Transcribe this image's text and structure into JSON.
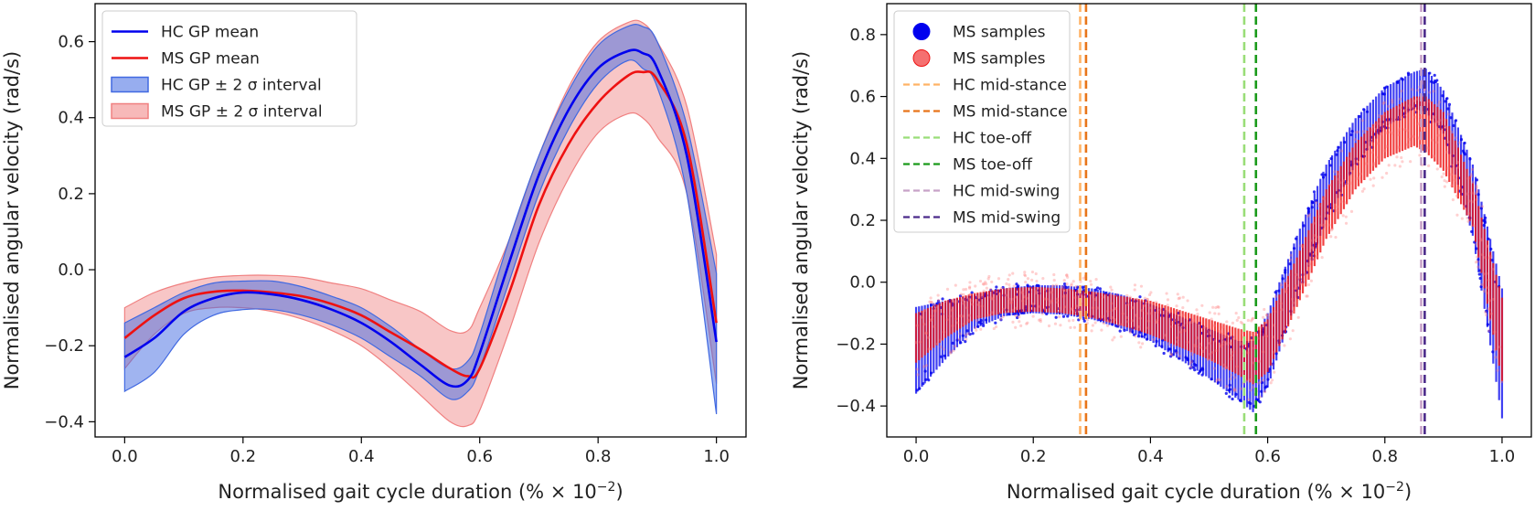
{
  "colors": {
    "hc": "#0000ee",
    "ms": "#ee1111",
    "hc_band_fill": "#4169e1",
    "ms_band_fill": "#f08080",
    "hc_mid_stance": "#ffb366",
    "ms_mid_stance": "#e8751a",
    "hc_toe_off": "#99dd77",
    "ms_toe_off": "#1a9a1a",
    "hc_mid_swing": "#c8a2c8",
    "ms_mid_swing": "#4b2a8a"
  },
  "chart_data": [
    {
      "id": "left",
      "type": "line",
      "xlabel": "Normalised gait cycle duration (% × 10",
      "xlabel_exp": "−2",
      "xlabel_close": ")",
      "ylabel": "Normalised angular velocity (rad/s)",
      "xlim": [
        -0.05,
        1.05
      ],
      "ylim": [
        -0.44,
        0.7
      ],
      "xticks": [
        0.0,
        0.2,
        0.4,
        0.6,
        0.8,
        1.0
      ],
      "xtick_labels": [
        "0.0",
        "0.2",
        "0.4",
        "0.6",
        "0.8",
        "1.0"
      ],
      "yticks": [
        -0.4,
        -0.2,
        0.0,
        0.2,
        0.4,
        0.6
      ],
      "ytick_labels": [
        "−0.4",
        "−0.2",
        "0.0",
        "0.2",
        "0.4",
        "0.6"
      ],
      "x": [
        0.0,
        0.05,
        0.1,
        0.15,
        0.2,
        0.25,
        0.3,
        0.35,
        0.4,
        0.45,
        0.5,
        0.55,
        0.58,
        0.6,
        0.65,
        0.7,
        0.75,
        0.8,
        0.85,
        0.875,
        0.9,
        0.95,
        1.0
      ],
      "series": [
        {
          "name": "HC GP mean",
          "kind": "mean",
          "group": "hc",
          "values": [
            -0.23,
            -0.18,
            -0.11,
            -0.075,
            -0.06,
            -0.065,
            -0.08,
            -0.105,
            -0.14,
            -0.19,
            -0.25,
            -0.305,
            -0.29,
            -0.22,
            0.02,
            0.25,
            0.42,
            0.53,
            0.575,
            0.57,
            0.53,
            0.3,
            -0.19
          ]
        },
        {
          "name": "MS GP mean",
          "kind": "mean",
          "group": "ms",
          "values": [
            -0.18,
            -0.12,
            -0.075,
            -0.058,
            -0.055,
            -0.06,
            -0.07,
            -0.09,
            -0.12,
            -0.165,
            -0.21,
            -0.26,
            -0.28,
            -0.26,
            -0.06,
            0.17,
            0.33,
            0.44,
            0.51,
            0.52,
            0.5,
            0.33,
            -0.14
          ]
        },
        {
          "name": "HC GP ± 2 σ interval",
          "kind": "band",
          "group": "hc",
          "lower": [
            -0.32,
            -0.27,
            -0.17,
            -0.12,
            -0.105,
            -0.105,
            -0.12,
            -0.145,
            -0.18,
            -0.23,
            -0.28,
            -0.34,
            -0.32,
            -0.26,
            -0.03,
            0.2,
            0.37,
            0.49,
            0.55,
            0.53,
            0.48,
            0.2,
            -0.38
          ],
          "upper": [
            -0.14,
            -0.1,
            -0.06,
            -0.035,
            -0.03,
            -0.03,
            -0.045,
            -0.07,
            -0.1,
            -0.15,
            -0.21,
            -0.26,
            -0.24,
            -0.17,
            0.08,
            0.3,
            0.47,
            0.59,
            0.64,
            0.64,
            0.6,
            0.38,
            -0.01
          ]
        },
        {
          "name": "MS GP ± 2 σ interval",
          "kind": "band",
          "group": "ms",
          "lower": [
            -0.26,
            -0.17,
            -0.115,
            -0.1,
            -0.1,
            -0.11,
            -0.13,
            -0.16,
            -0.2,
            -0.26,
            -0.33,
            -0.4,
            -0.41,
            -0.37,
            -0.16,
            0.07,
            0.24,
            0.36,
            0.41,
            0.4,
            0.35,
            0.2,
            -0.3
          ]
        },
        {
          "name": "MS GP ± 2 σ interval upper",
          "kind": "band_upper",
          "group": "ms",
          "upper": [
            -0.1,
            -0.06,
            -0.035,
            -0.02,
            -0.015,
            -0.015,
            -0.02,
            -0.035,
            -0.05,
            -0.08,
            -0.11,
            -0.16,
            -0.16,
            -0.1,
            0.08,
            0.3,
            0.48,
            0.6,
            0.65,
            0.65,
            0.6,
            0.43,
            0.04
          ]
        }
      ],
      "legend": [
        {
          "label": "HC GP mean",
          "style": "line",
          "group": "hc"
        },
        {
          "label": "MS GP mean",
          "style": "line",
          "group": "ms"
        },
        {
          "label": "HC GP ± 2 σ interval",
          "style": "patch",
          "group": "hc"
        },
        {
          "label": "MS GP ± 2 σ interval",
          "style": "patch",
          "group": "ms"
        }
      ],
      "legend_loc": "upper-left"
    },
    {
      "id": "right",
      "type": "scatter",
      "xlabel": "Normalised gait cycle duration (% × 10",
      "xlabel_exp": "−2",
      "xlabel_close": ")",
      "ylabel": "Normalised angular velocity (rad/s)",
      "xlim": [
        -0.05,
        1.05
      ],
      "ylim": [
        -0.5,
        0.9
      ],
      "xticks": [
        0.0,
        0.2,
        0.4,
        0.6,
        0.8,
        1.0
      ],
      "xtick_labels": [
        "0.0",
        "0.2",
        "0.4",
        "0.6",
        "0.8",
        "1.0"
      ],
      "yticks": [
        -0.4,
        -0.2,
        0.0,
        0.2,
        0.4,
        0.6,
        0.8
      ],
      "ytick_labels": [
        "−0.4",
        "−0.2",
        "0.0",
        "0.2",
        "0.4",
        "0.6",
        "0.8"
      ],
      "x": [
        0.0,
        0.05,
        0.1,
        0.15,
        0.2,
        0.25,
        0.3,
        0.35,
        0.4,
        0.45,
        0.5,
        0.55,
        0.575,
        0.6,
        0.65,
        0.7,
        0.75,
        0.8,
        0.85,
        0.87,
        0.9,
        0.95,
        1.0
      ],
      "series": [
        {
          "name": "MS samples",
          "group": "hc_samples",
          "lower": [
            -0.36,
            -0.25,
            -0.15,
            -0.11,
            -0.1,
            -0.105,
            -0.12,
            -0.15,
            -0.19,
            -0.25,
            -0.31,
            -0.38,
            -0.42,
            -0.34,
            -0.05,
            0.2,
            0.38,
            0.5,
            0.56,
            0.55,
            0.48,
            0.15,
            -0.44
          ],
          "upper": [
            -0.08,
            -0.06,
            -0.04,
            -0.02,
            -0.01,
            -0.01,
            -0.02,
            -0.04,
            -0.07,
            -0.11,
            -0.15,
            -0.19,
            -0.19,
            -0.1,
            0.15,
            0.38,
            0.53,
            0.63,
            0.68,
            0.69,
            0.62,
            0.38,
            -0.02
          ]
        },
        {
          "name": "MS samples",
          "group": "ms_samples",
          "lower": [
            -0.26,
            -0.18,
            -0.12,
            -0.1,
            -0.095,
            -0.1,
            -0.115,
            -0.14,
            -0.17,
            -0.21,
            -0.25,
            -0.3,
            -0.33,
            -0.29,
            -0.08,
            0.14,
            0.3,
            0.4,
            0.44,
            0.42,
            0.36,
            0.18,
            -0.32
          ],
          "upper": [
            -0.1,
            -0.06,
            -0.035,
            -0.02,
            -0.015,
            -0.02,
            -0.03,
            -0.045,
            -0.06,
            -0.09,
            -0.12,
            -0.15,
            -0.16,
            -0.12,
            0.08,
            0.3,
            0.45,
            0.55,
            0.6,
            0.6,
            0.55,
            0.32,
            -0.05
          ]
        }
      ],
      "vlines": [
        {
          "label": "HC mid-stance",
          "x": 0.28,
          "color_key": "hc_mid_stance"
        },
        {
          "label": "MS mid-stance",
          "x": 0.29,
          "color_key": "ms_mid_stance"
        },
        {
          "label": "HC toe-off",
          "x": 0.56,
          "color_key": "hc_toe_off"
        },
        {
          "label": "MS toe-off",
          "x": 0.58,
          "color_key": "ms_toe_off"
        },
        {
          "label": "HC mid-swing",
          "x": 0.862,
          "color_key": "hc_mid_swing"
        },
        {
          "label": "MS mid-swing",
          "x": 0.868,
          "color_key": "ms_mid_swing"
        }
      ],
      "legend": [
        {
          "label": "MS samples",
          "style": "dot",
          "group": "hc"
        },
        {
          "label": "MS samples",
          "style": "dot",
          "group": "ms"
        },
        {
          "label": "HC mid-stance",
          "style": "dash",
          "color_key": "hc_mid_stance"
        },
        {
          "label": "MS mid-stance",
          "style": "dash",
          "color_key": "ms_mid_stance"
        },
        {
          "label": "HC toe-off",
          "style": "dash",
          "color_key": "hc_toe_off"
        },
        {
          "label": "MS toe-off",
          "style": "dash",
          "color_key": "ms_toe_off"
        },
        {
          "label": "HC mid-swing",
          "style": "dash",
          "color_key": "hc_mid_swing"
        },
        {
          "label": "MS mid-swing",
          "style": "dash",
          "color_key": "ms_mid_swing"
        }
      ],
      "legend_loc": "upper-left"
    }
  ]
}
